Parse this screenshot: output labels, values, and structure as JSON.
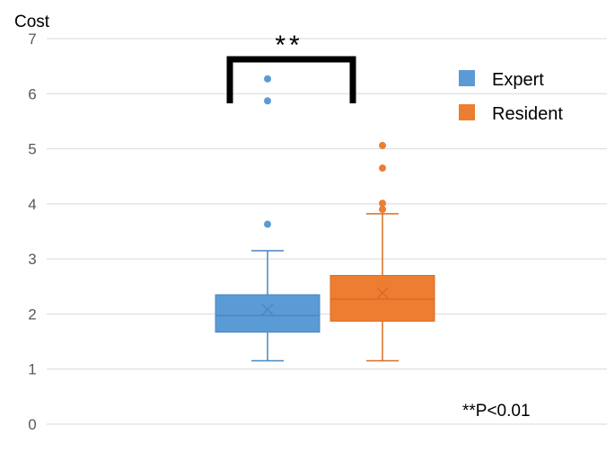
{
  "chart_data": {
    "type": "box",
    "ylabel": "Cost",
    "ylim": [
      0,
      7
    ],
    "yticks": [
      0,
      1,
      2,
      3,
      4,
      5,
      6,
      7
    ],
    "grid": true,
    "legend_position": "top-right",
    "series": [
      {
        "name": "Expert",
        "color": "#5b9bd5",
        "min": 1.15,
        "q1": 1.67,
        "median": 1.97,
        "q3": 2.35,
        "max": 3.15,
        "mean": 2.08,
        "outliers": [
          3.63,
          5.87,
          6.27
        ]
      },
      {
        "name": "Resident",
        "color": "#ed7d31",
        "min": 1.15,
        "q1": 1.87,
        "median": 2.27,
        "q3": 2.7,
        "max": 3.82,
        "mean": 2.38,
        "outliers": [
          3.9,
          4.01,
          4.65,
          5.06
        ]
      }
    ],
    "annotations": {
      "significance": "**",
      "p_value_note": "**P<0.01"
    }
  }
}
